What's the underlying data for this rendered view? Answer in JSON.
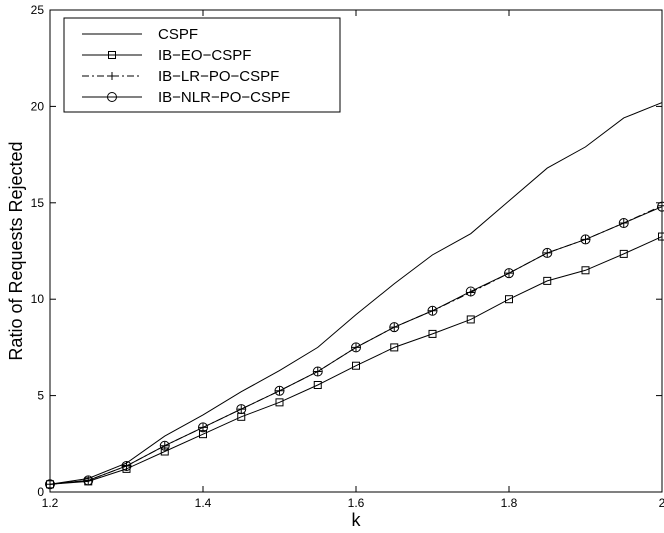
{
  "chart_data": {
    "type": "line",
    "title": "",
    "xlabel": "k",
    "ylabel": "Ratio of Requests Rejected",
    "xlim": [
      1.2,
      2
    ],
    "ylim": [
      0,
      25
    ],
    "x": [
      1.2,
      1.25,
      1.3,
      1.35,
      1.4,
      1.45,
      1.5,
      1.55,
      1.6,
      1.65,
      1.7,
      1.75,
      1.8,
      1.85,
      1.9,
      1.95,
      2.0
    ],
    "xticks": [
      "1.2",
      "1.4",
      "1.6",
      "1.8",
      "2"
    ],
    "yticks": [
      "0",
      "5",
      "10",
      "15",
      "20",
      "25"
    ],
    "grid": false,
    "legend_position": "top-left",
    "series": [
      {
        "name": "CSPF",
        "marker": "none",
        "line": "solid",
        "values": [
          0.4,
          0.7,
          1.5,
          2.9,
          4.0,
          5.2,
          6.3,
          7.5,
          9.2,
          10.8,
          12.3,
          13.4,
          15.1,
          16.8,
          17.9,
          19.4,
          20.2
        ]
      },
      {
        "name": "IB−EO−CSPF",
        "marker": "square",
        "line": "solid",
        "values": [
          0.4,
          0.55,
          1.2,
          2.1,
          3.0,
          3.9,
          4.65,
          5.55,
          6.55,
          7.5,
          8.2,
          8.95,
          10.0,
          10.95,
          11.5,
          12.35,
          13.25
        ]
      },
      {
        "name": "IB−LR−PO−CSPF",
        "marker": "plus",
        "line": "dashdot",
        "values": [
          0.4,
          0.6,
          1.35,
          2.4,
          3.35,
          4.3,
          5.25,
          6.25,
          7.5,
          8.55,
          9.4,
          10.35,
          11.35,
          12.4,
          13.1,
          13.95,
          14.85
        ]
      },
      {
        "name": "IB−NLR−PO−CSPF",
        "marker": "circle",
        "line": "solid",
        "values": [
          0.4,
          0.6,
          1.35,
          2.4,
          3.35,
          4.3,
          5.25,
          6.25,
          7.5,
          8.55,
          9.4,
          10.4,
          11.35,
          12.4,
          13.1,
          13.95,
          14.8
        ]
      }
    ]
  },
  "colors": {
    "ink": "#000000",
    "background": "#ffffff"
  }
}
